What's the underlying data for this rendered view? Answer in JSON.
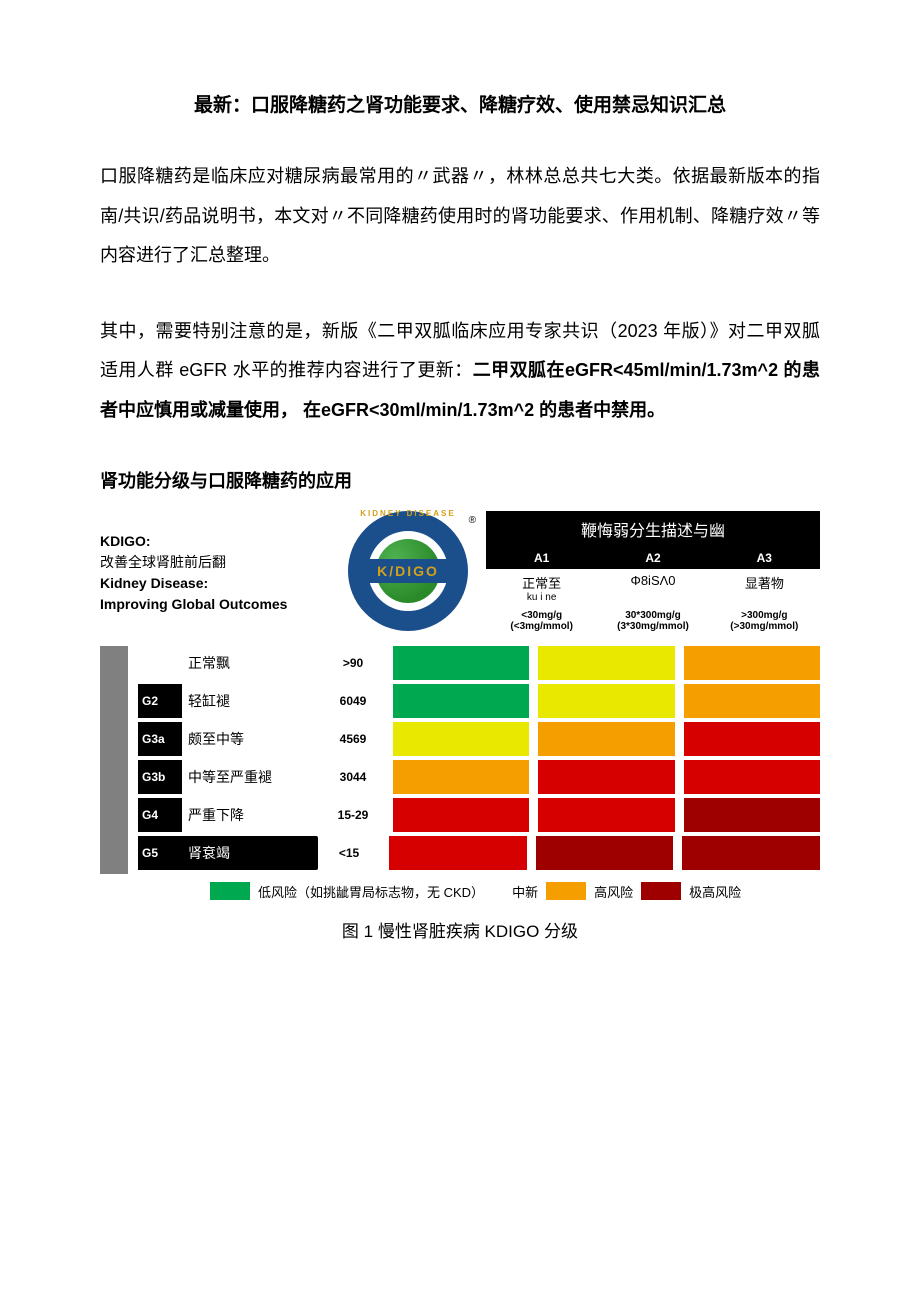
{
  "title": "最新：口服降糖药之肾功能要求、降糖疗效、使用禁忌知识汇总",
  "para1": "口服降糖药是临床应对糖尿病最常用的〃武器〃，林林总总共七大类。依据最新版本的指南/共识/药品说明书，本文对〃不同降糖药使用时的肾功能要求、作用机制、降糖疗效〃等内容进行了汇总整理。",
  "para2_pre": "其中，需要特别注意的是，新版《二甲双胍临床应用专家共识（2023 年版）》对二甲双胍适用人群 eGFR 水平的推荐内容进行了更新：",
  "para2_bold": "二甲双胍在eGFR<45ml/min/1.73m^2 的患者中应慎用或减量使用， 在eGFR<30ml/min/1.73m^2 的患者中禁用。",
  "section_head": "肾功能分级与口服降糖药的应用",
  "kdigo_left": {
    "l1": "KDIGO:",
    "l2": "改善全球肾脏前后翻",
    "l3": "Kidney Disease:",
    "l4": "Improving Global Outcomes"
  },
  "logo": {
    "ring_text": "KIDNEY DISEASE",
    "band": "K/DIGO",
    "reg": "®"
  },
  "albuminuria": {
    "header": "鞭悔弱分生描述与幽",
    "codes": [
      "A1",
      "A2",
      "A3"
    ],
    "labels": [
      "正常至",
      "Φ8iSΛ0",
      "显著物"
    ],
    "sublabel_extra": "ku  i  ne",
    "ranges": [
      "<30mg/g\n(<3mg/mmol)",
      "30*300mg/g\n(3*30mg/mmol)",
      ">300mg/g\n(>30mg/mmol)"
    ]
  },
  "heatmap": {
    "rows": [
      {
        "g": "",
        "g_blank": true,
        "desc": "正常飘",
        "val": ">90",
        "colors": [
          "#00a84f",
          "#e8e800",
          "#f59e00"
        ],
        "inv": false
      },
      {
        "g": "G2",
        "g_blank": false,
        "desc": "轻缸褪",
        "val": "6049",
        "colors": [
          "#00a84f",
          "#e8e800",
          "#f59e00"
        ],
        "inv": false
      },
      {
        "g": "G3a",
        "g_blank": false,
        "desc": "颇至中等",
        "val": "4569",
        "colors": [
          "#e8e800",
          "#f59e00",
          "#d70000"
        ],
        "inv": false
      },
      {
        "g": "G3b",
        "g_blank": false,
        "desc": "中等至严重褪",
        "val": "3044",
        "colors": [
          "#f59e00",
          "#d70000",
          "#d70000"
        ],
        "inv": false
      },
      {
        "g": "G4",
        "g_blank": false,
        "desc": "严重下降",
        "val": "15-29",
        "colors": [
          "#d70000",
          "#d70000",
          "#9e0000"
        ],
        "inv": false
      },
      {
        "g": "G5",
        "g_blank": false,
        "desc": "肾袞竭",
        "val": "<15",
        "colors": [
          "#d70000",
          "#9e0000",
          "#9e0000"
        ],
        "inv": true
      }
    ],
    "colors": {
      "green": "#00a84f",
      "yellow": "#e8e800",
      "orange": "#f59e00",
      "red": "#d70000",
      "darkred": "#9e0000"
    }
  },
  "legend": {
    "low": "低风险（如挑龇胃局标志物，无 CKD）",
    "mid": "中新",
    "high": "高风险",
    "vhigh": "极高风险"
  },
  "caption": "图 1 慢性肾脏疾病 KDIGO 分级"
}
